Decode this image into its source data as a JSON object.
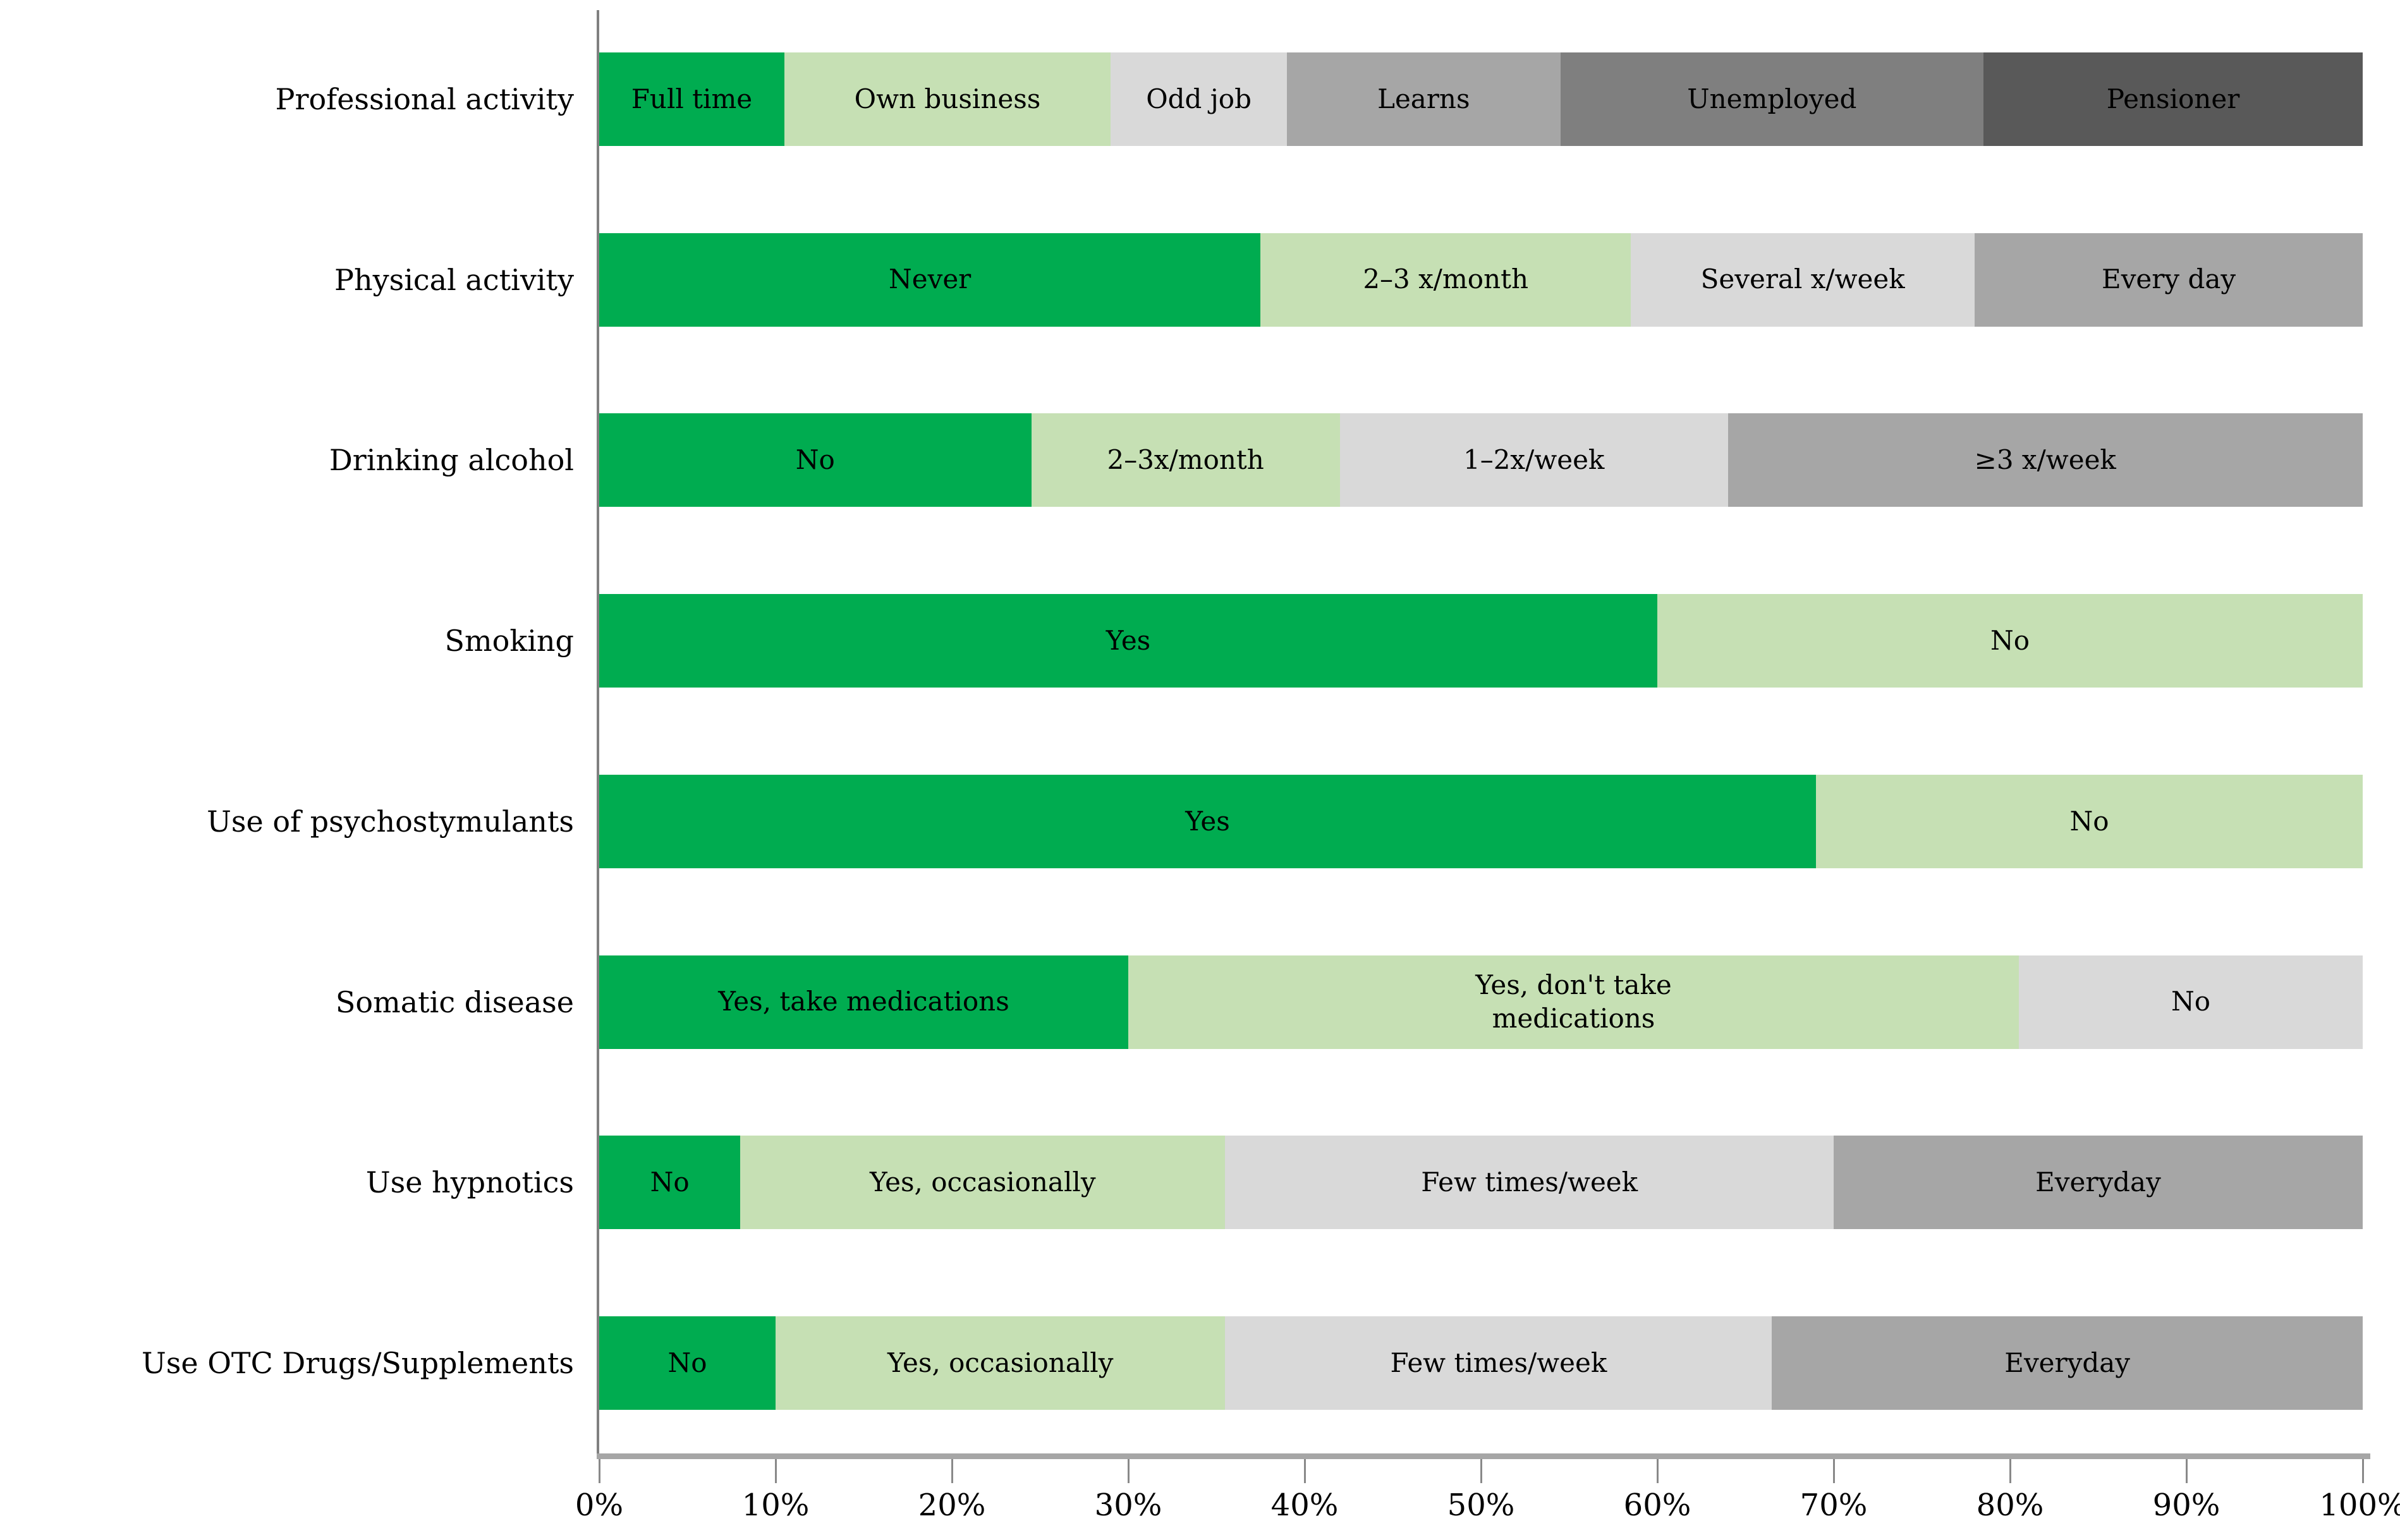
{
  "chart_data": {
    "type": "bar",
    "variant": "horizontal-stacked-percentage",
    "title": "",
    "xlabel": "",
    "ylabel": "",
    "xlim": [
      0,
      100
    ],
    "unit": "%",
    "grid": false,
    "legend_position": "none (labels inside segments)",
    "axis_tick_labels": [
      "0%",
      "10%",
      "20%",
      "30%",
      "40%",
      "50%",
      "60%",
      "70%",
      "80%",
      "90%",
      "100%"
    ],
    "palette": {
      "green": "#00ac50",
      "light_green": "#c6e0b4",
      "light_gray": "#d9d9d9",
      "medium_gray": "#a6a6a6",
      "dark_gray": "#7f7f7f",
      "darkest_gray": "#595959"
    },
    "axis_line_color": "#808080",
    "rows": [
      {
        "category": "Professional activity",
        "segments": [
          {
            "label": "Full time",
            "value": 10.5,
            "color_key": "green"
          },
          {
            "label": "Own business",
            "value": 18.5,
            "color_key": "light_green"
          },
          {
            "label": "Odd job",
            "value": 10,
            "color_key": "light_gray"
          },
          {
            "label": "Learns",
            "value": 15.5,
            "color_key": "medium_gray"
          },
          {
            "label": "Unemployed",
            "value": 24,
            "color_key": "dark_gray"
          },
          {
            "label": "Pensioner",
            "value": 21.5,
            "color_key": "darkest_gray"
          }
        ]
      },
      {
        "category": "Physical activity",
        "segments": [
          {
            "label": "Never",
            "value": 37.5,
            "color_key": "green"
          },
          {
            "label": "2–3 x/month",
            "value": 21,
            "color_key": "light_green"
          },
          {
            "label": "Several x/week",
            "value": 19.5,
            "color_key": "light_gray"
          },
          {
            "label": "Every day",
            "value": 22,
            "color_key": "medium_gray"
          }
        ]
      },
      {
        "category": "Drinking alcohol",
        "segments": [
          {
            "label": "No",
            "value": 24.5,
            "color_key": "green"
          },
          {
            "label": "2–3x/month",
            "value": 17.5,
            "color_key": "light_green"
          },
          {
            "label": "1–2x/week",
            "value": 22,
            "color_key": "light_gray"
          },
          {
            "label": "≥3 x/week",
            "value": 36,
            "color_key": "medium_gray"
          }
        ]
      },
      {
        "category": "Smoking",
        "segments": [
          {
            "label": "Yes",
            "value": 60,
            "color_key": "green"
          },
          {
            "label": "No",
            "value": 40,
            "color_key": "light_green"
          }
        ]
      },
      {
        "category": "Use of psychostymulants",
        "segments": [
          {
            "label": "Yes",
            "value": 69,
            "color_key": "green"
          },
          {
            "label": "No",
            "value": 31,
            "color_key": "light_green"
          }
        ]
      },
      {
        "category": "Somatic disease",
        "segments": [
          {
            "label": "Yes, take medications",
            "value": 30,
            "color_key": "green"
          },
          {
            "label": "Yes, don't take\nmedications",
            "value": 50.5,
            "color_key": "light_green"
          },
          {
            "label": "No",
            "value": 19.5,
            "color_key": "light_gray"
          }
        ]
      },
      {
        "category": "Use hypnotics",
        "segments": [
          {
            "label": "No",
            "value": 8,
            "color_key": "green"
          },
          {
            "label": "Yes, occasionally",
            "value": 27.5,
            "color_key": "light_green"
          },
          {
            "label": "Few times/week",
            "value": 34.5,
            "color_key": "light_gray"
          },
          {
            "label": "Everyday",
            "value": 30,
            "color_key": "medium_gray"
          }
        ]
      },
      {
        "category": "Use OTC Drugs/Supplements",
        "segments": [
          {
            "label": "No",
            "value": 10,
            "color_key": "green"
          },
          {
            "label": "Yes, occasionally",
            "value": 25.5,
            "color_key": "light_green"
          },
          {
            "label": "Few times/week",
            "value": 31,
            "color_key": "light_gray"
          },
          {
            "label": "Everyday",
            "value": 33.5,
            "color_key": "medium_gray"
          }
        ]
      }
    ]
  }
}
